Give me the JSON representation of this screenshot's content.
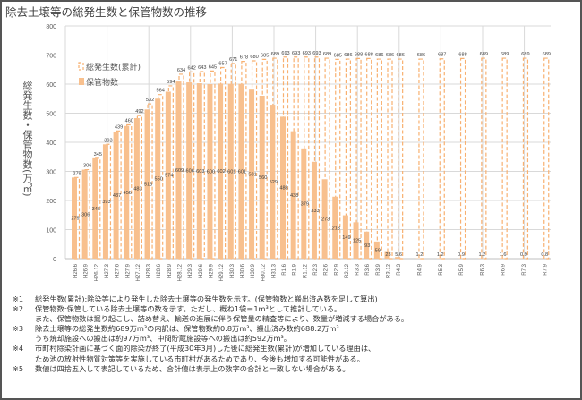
{
  "chart_data": {
    "type": "bar",
    "title": "除去土壌等の総発生数と保管物数の推移",
    "ylabel": "総発生数・保管物数(万㎥)",
    "ylim": [
      0,
      800
    ],
    "yticks": [
      0,
      100,
      200,
      300,
      400,
      500,
      600,
      700,
      800
    ],
    "grid": true,
    "legend_position": "top-left",
    "colors": {
      "bar": "#F8C08E",
      "dashed": "#F8B070",
      "grid": "#d9d9d9",
      "label": "#404040"
    },
    "categories": [
      "H26.6",
      "H26.9",
      "H26.12",
      "H27.3",
      "H27.6",
      "H27.9",
      "H27.12",
      "H28.3",
      "H28.6",
      "H28.9",
      "H28.12",
      "H29.3",
      "H29.6",
      "H29.9",
      "H29.12",
      "H30.3",
      "H30.6",
      "H30.9",
      "H30.12",
      "H31.3",
      "R1.6",
      "R1.9",
      "R1.12",
      "R2.3",
      "R2.6",
      "R2.9",
      "R2.12",
      "R3.3",
      "R3.6",
      "R3.9",
      "R3.12",
      "R4.3",
      "R4.9",
      "R5.3",
      "R5.9",
      "R6.3",
      "R6.9",
      "R7.3",
      "R7.9"
    ],
    "series": [
      {
        "name": "総発生数(累計)",
        "style": "dashed-outline",
        "values": [
          279,
          306,
          345,
          393,
          439,
          460,
          492,
          532,
          564,
          594,
          634,
          642,
          643,
          645,
          657,
          671,
          678,
          680,
          685,
          689,
          693,
          693,
          693,
          693,
          689,
          685,
          686,
          688,
          688,
          686,
          686,
          686,
          686,
          687,
          688,
          689,
          689,
          689,
          689
        ]
      },
      {
        "name": "保管物数",
        "style": "solid",
        "values": [
          279,
          306,
          345,
          393,
          437,
          456,
          483,
          513,
          550,
          574,
          609,
          606,
          603,
          600,
          602,
          601,
          601,
          581,
          560,
          529,
          488,
          438,
          379,
          333,
          273,
          213,
          149,
          125,
          93,
          59,
          23,
          5.6,
          1.2,
          1.2,
          0.9,
          1.2,
          1.6,
          0.9,
          0.8
        ]
      }
    ]
  },
  "notes": [
    {
      "mark": "※1",
      "lines": [
        "総発生数(累計):除染等により発生した除去土壌等の発生数を示す。(保管物数と搬出済み数を足して算出)"
      ]
    },
    {
      "mark": "※2",
      "lines": [
        "保管物数:保管している除去土壌等の数を示す。ただし、概ね1袋＝1m³として推計している。",
        "また、保管物数は掘り起こし、詰め替え、輸送の進展に伴う保管量の精査等により、数量が増減する場合がある。"
      ]
    },
    {
      "mark": "※3",
      "lines": [
        "除去土壌等の総発生数約689万m³の内訳は、保管物数約0.8万m³、搬出済み数約688.2万m³",
        "うち焼却施設への搬出は約97万m³、中間貯蔵施設等への搬出は約592万m³。"
      ]
    },
    {
      "mark": "※4",
      "lines": [
        "市町村除染計画に基づく面的除染が終了(平成30年3月)した後に総発生数(累計)が増加している理由は、",
        "ため池の放射性物質対策等を実施している市町村があるためであり、今後も増加する可能性がある。"
      ]
    },
    {
      "mark": "※5",
      "lines": [
        "数値は四捨五入して表記しているため、合計値は表示上の数字の合計と一致しない場合がある。"
      ]
    }
  ]
}
